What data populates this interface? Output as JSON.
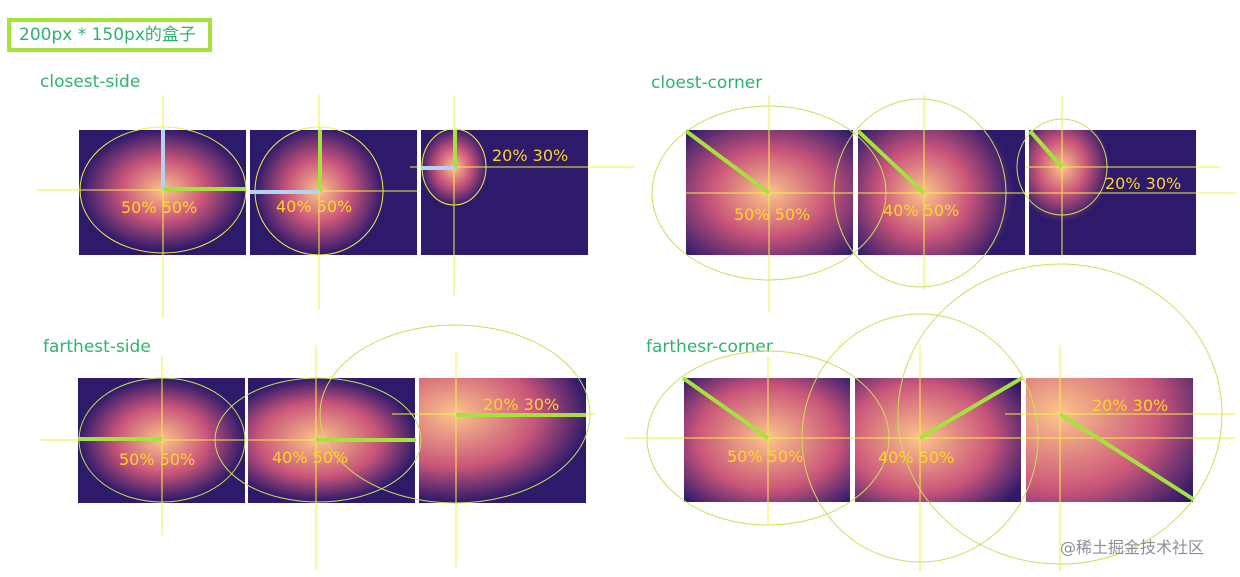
{
  "header": {
    "box_caption": "200px * 150px的盒子"
  },
  "sections": {
    "closest_side": {
      "title": "closest-side",
      "labels": [
        "50% 50%",
        "40% 50%",
        "20% 30%"
      ]
    },
    "closest_corner": {
      "title": "cloest-corner",
      "labels": [
        "50% 50%",
        "40% 50%",
        "20% 30%"
      ]
    },
    "farthest_side": {
      "title": "farthest-side",
      "labels": [
        "50% 50%",
        "40% 50%",
        "20% 30%"
      ]
    },
    "farthest_corner": {
      "title": "farthesr-corner",
      "labels": [
        "50% 50%",
        "40% 50%",
        "20% 30%"
      ]
    }
  },
  "watermark": "@稀土掘金技术社区",
  "colors": {
    "box_background": "#2e1a6b",
    "gradient_center": "#fcc48a",
    "gradient_mid": "#c9557a",
    "guide_line": "#f2f044",
    "radius_line": "#a4e23c",
    "radius_line_alt": "#b3d4f0",
    "title_green": "#2fb36b",
    "label_yellow": "#ffd428"
  }
}
